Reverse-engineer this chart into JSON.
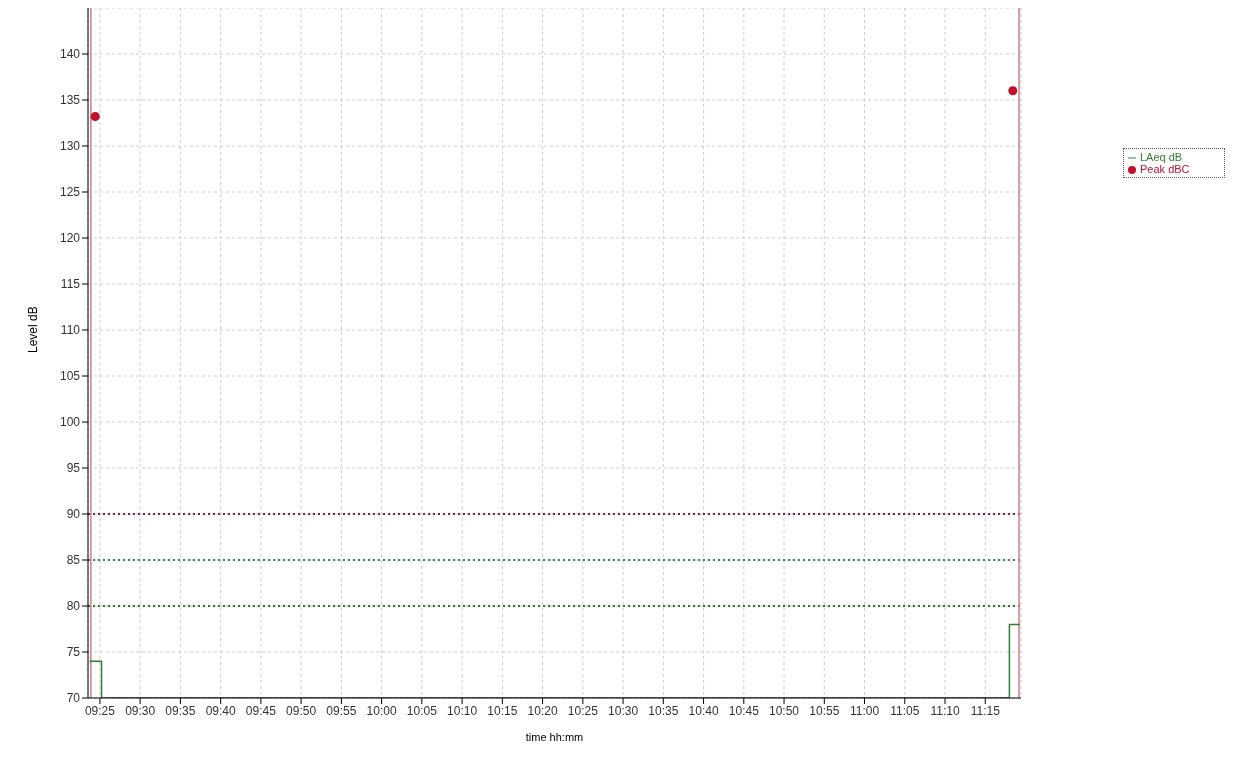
{
  "chart_data": {
    "type": "step",
    "xlabel": "time hh:mm",
    "ylabel": "Level dB",
    "xlim": [
      9.392,
      11.324
    ],
    "ylim": [
      70,
      145
    ],
    "xticks": [
      {
        "value": 9.4167,
        "label": "09:25"
      },
      {
        "value": 9.5,
        "label": "09:30"
      },
      {
        "value": 9.5833,
        "label": "09:35"
      },
      {
        "value": 9.6667,
        "label": "09:40"
      },
      {
        "value": 9.75,
        "label": "09:45"
      },
      {
        "value": 9.8333,
        "label": "09:50"
      },
      {
        "value": 9.9167,
        "label": "09:55"
      },
      {
        "value": 10,
        "label": "10:00"
      },
      {
        "value": 10.0833,
        "label": "10:05"
      },
      {
        "value": 10.1667,
        "label": "10:10"
      },
      {
        "value": 10.25,
        "label": "10:15"
      },
      {
        "value": 10.3333,
        "label": "10:20"
      },
      {
        "value": 10.4167,
        "label": "10:25"
      },
      {
        "value": 10.5,
        "label": "10:30"
      },
      {
        "value": 10.5833,
        "label": "10:35"
      },
      {
        "value": 10.6667,
        "label": "10:40"
      },
      {
        "value": 10.75,
        "label": "10:45"
      },
      {
        "value": 10.8333,
        "label": "10:50"
      },
      {
        "value": 10.9167,
        "label": "10:55"
      },
      {
        "value": 11,
        "label": "11:00"
      },
      {
        "value": 11.0833,
        "label": "11:05"
      },
      {
        "value": 11.1667,
        "label": "11:10"
      },
      {
        "value": 11.25,
        "label": "11:15"
      }
    ],
    "yticks": [
      70,
      75,
      80,
      85,
      90,
      95,
      100,
      105,
      110,
      115,
      120,
      125,
      130,
      135,
      140
    ],
    "grid": true,
    "legend": "right",
    "series": [
      {
        "name": "LAeq dB",
        "color": "#2e7d32",
        "x": [
          9.395,
          9.42,
          11.3,
          11.322
        ],
        "values": [
          74,
          70,
          78,
          78
        ]
      },
      {
        "name": "Peak dBC",
        "type": "scatter",
        "color": "#c0102a",
        "marker": "circle",
        "x": [
          9.407,
          11.307
        ],
        "values": [
          133.2,
          136
        ]
      }
    ],
    "ref_lines": [
      {
        "axis": "y",
        "value": 90,
        "color": "#7a2050",
        "line_style": "dotted"
      },
      {
        "axis": "y",
        "value": 85,
        "color": "#3a8080",
        "line_style": "dotted"
      },
      {
        "axis": "y",
        "value": 80,
        "color": "#2a7a2a",
        "line_style": "dotted"
      },
      {
        "axis": "x",
        "value": 9.398,
        "color": "#d08080",
        "line_style": "solid"
      },
      {
        "axis": "x",
        "value": 11.32,
        "color": "#d08080",
        "line_style": "solid"
      }
    ]
  }
}
